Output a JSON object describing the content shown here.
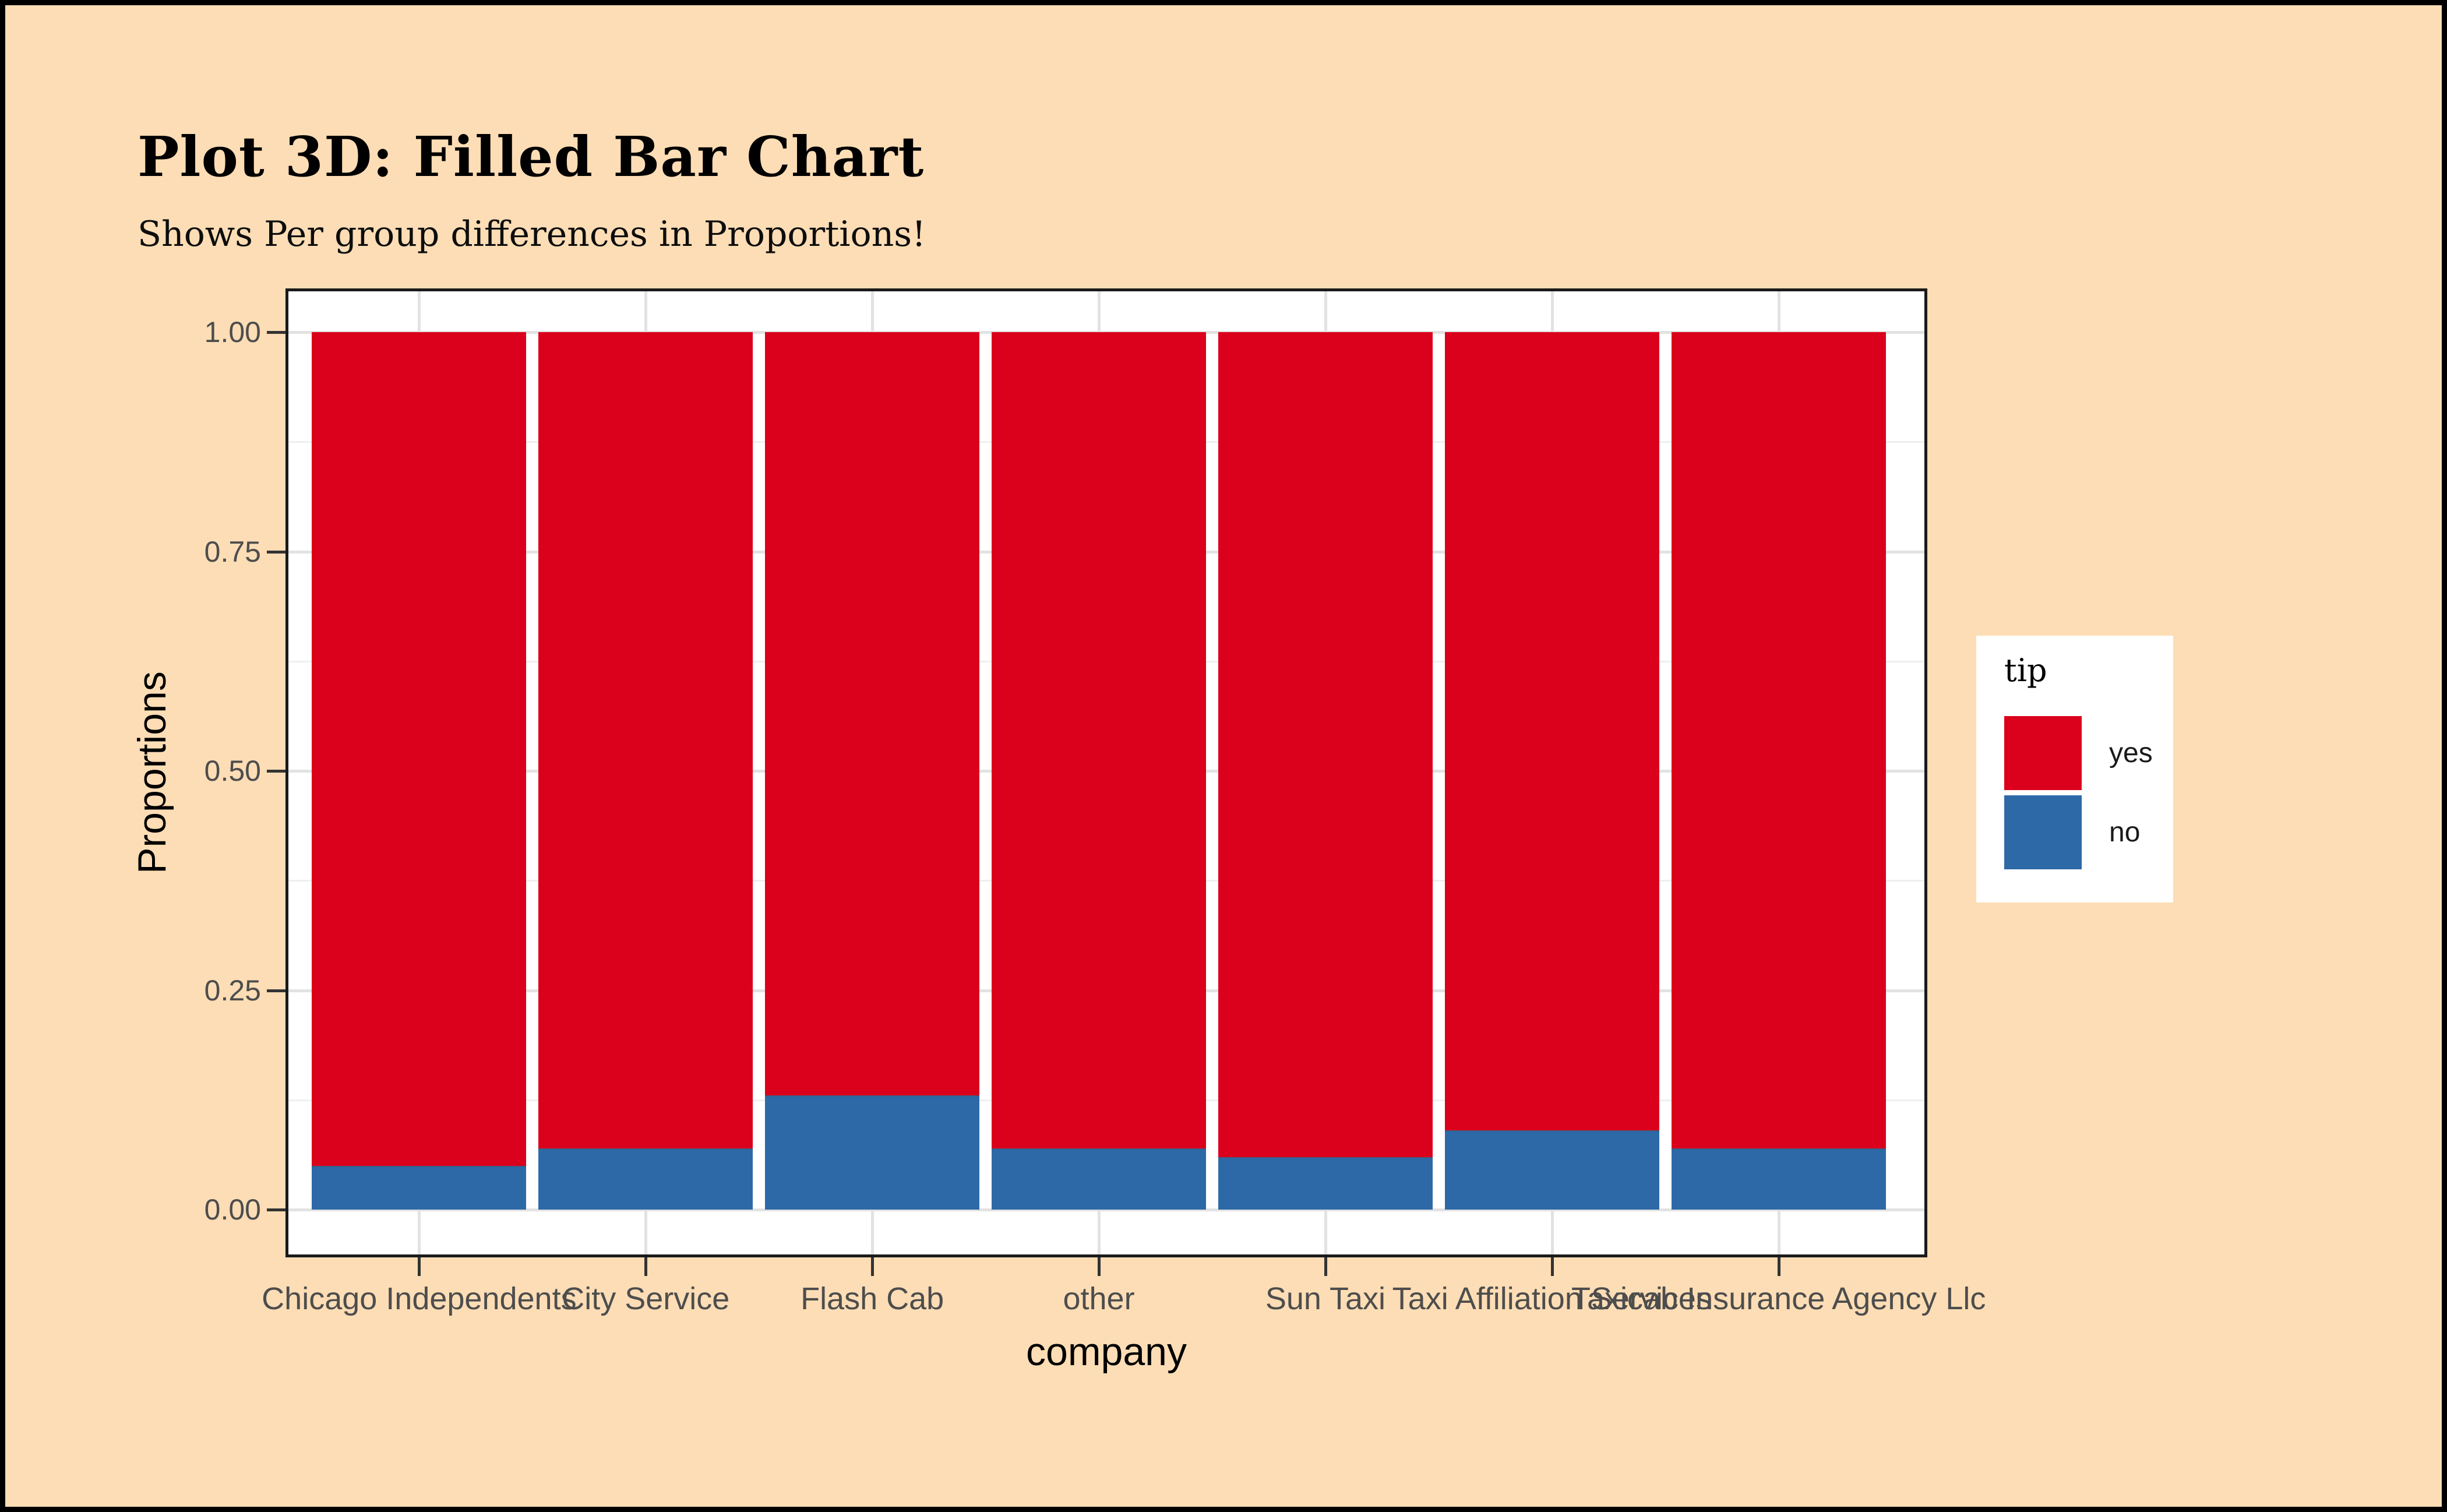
{
  "window": {
    "background_color": "#FDDDB5",
    "border_color": "#000000",
    "panel_background": "#FFFFFF",
    "gridline_major_color": "#E2E2E2",
    "gridline_minor_color": "#EFEFEF",
    "tick_text_color": "#4D4D4D"
  },
  "chart_data": {
    "type": "bar",
    "stacked": true,
    "normalized": true,
    "title": "Plot 3D: Filled Bar Chart",
    "subtitle": "Shows Per group differences in Proportions!",
    "xlabel": "company",
    "ylabel": "Proportions",
    "categories": [
      "Chicago Independents",
      "City Service",
      "Flash Cab",
      "other",
      "Sun Taxi",
      "Taxi Affiliation Services",
      "Taxicab Insurance Agency Llc"
    ],
    "series": [
      {
        "name": "yes",
        "color": "#DB001C",
        "values": [
          0.95,
          0.93,
          0.87,
          0.93,
          0.94,
          0.91,
          0.93
        ]
      },
      {
        "name": "no",
        "color": "#2D69A7",
        "values": [
          0.05,
          0.07,
          0.13,
          0.07,
          0.06,
          0.09,
          0.07
        ]
      }
    ],
    "ylim": [
      0,
      1
    ],
    "yticks": [
      {
        "value": 0.0,
        "label": "0.00"
      },
      {
        "value": 0.25,
        "label": "0.25"
      },
      {
        "value": 0.5,
        "label": "0.50"
      },
      {
        "value": 0.75,
        "label": "0.75"
      },
      {
        "value": 1.0,
        "label": "1.00"
      }
    ],
    "minor_yticks": [
      0.125,
      0.375,
      0.625,
      0.875
    ],
    "grid": true,
    "legend": {
      "title": "tip",
      "position": "right",
      "entries": [
        {
          "label": "yes",
          "color": "#DB001C"
        },
        {
          "label": "no",
          "color": "#2D69A7"
        }
      ]
    }
  }
}
